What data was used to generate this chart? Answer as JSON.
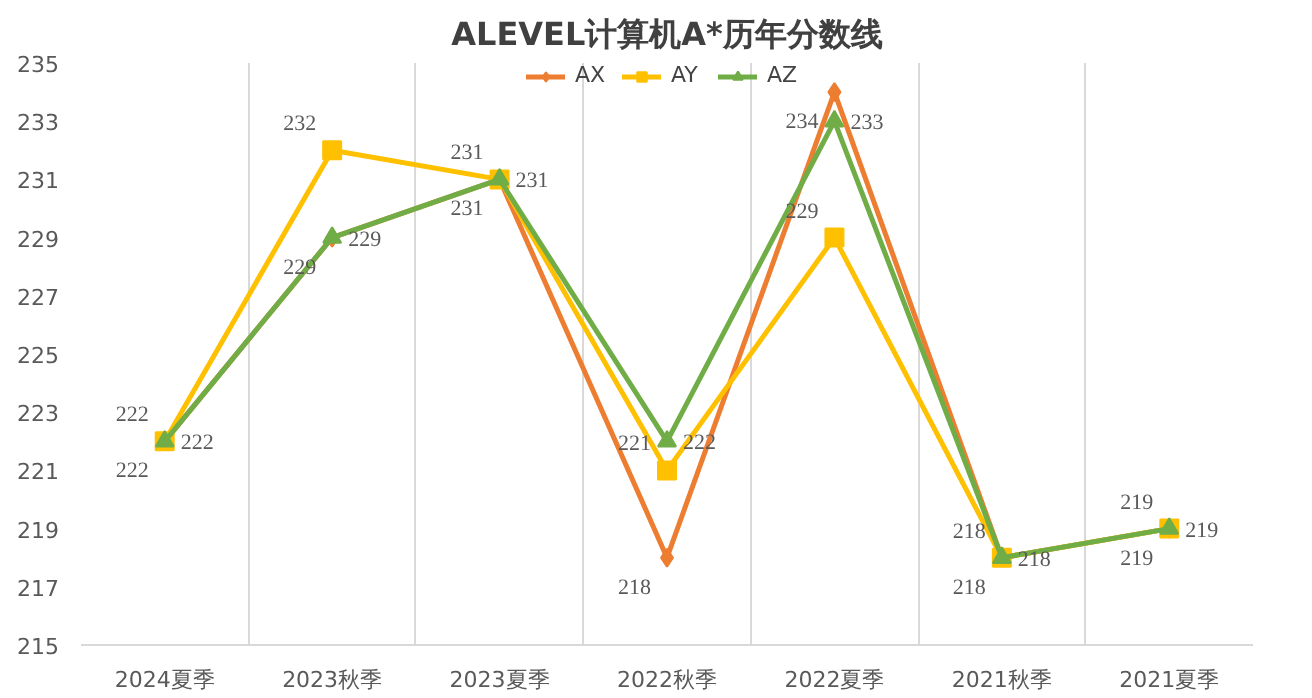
{
  "chart_data": {
    "type": "line",
    "title": "ALEVEL计算机A*历年分数线",
    "categories": [
      "2024夏季",
      "2023秋季",
      "2023夏季",
      "2022秋季",
      "2022夏季",
      "2021秋季",
      "2021夏季"
    ],
    "series": [
      {
        "name": "AX",
        "color": "#ed7d31",
        "marker": "diamond",
        "values": [
          222,
          229,
          231,
          218,
          234,
          218,
          219
        ]
      },
      {
        "name": "AY",
        "color": "#ffc000",
        "marker": "square",
        "values": [
          222,
          232,
          231,
          221,
          229,
          218,
          219
        ]
      },
      {
        "name": "AZ",
        "color": "#70ad47",
        "marker": "triangle",
        "values": [
          222,
          229,
          231,
          222,
          233,
          218,
          219
        ]
      }
    ],
    "ylim": [
      215,
      235
    ],
    "yticks": [
      215,
      217,
      219,
      221,
      223,
      225,
      227,
      229,
      231,
      233,
      235
    ],
    "grid": "x",
    "legend": "top",
    "data_labels": true,
    "line_style": "solid"
  }
}
